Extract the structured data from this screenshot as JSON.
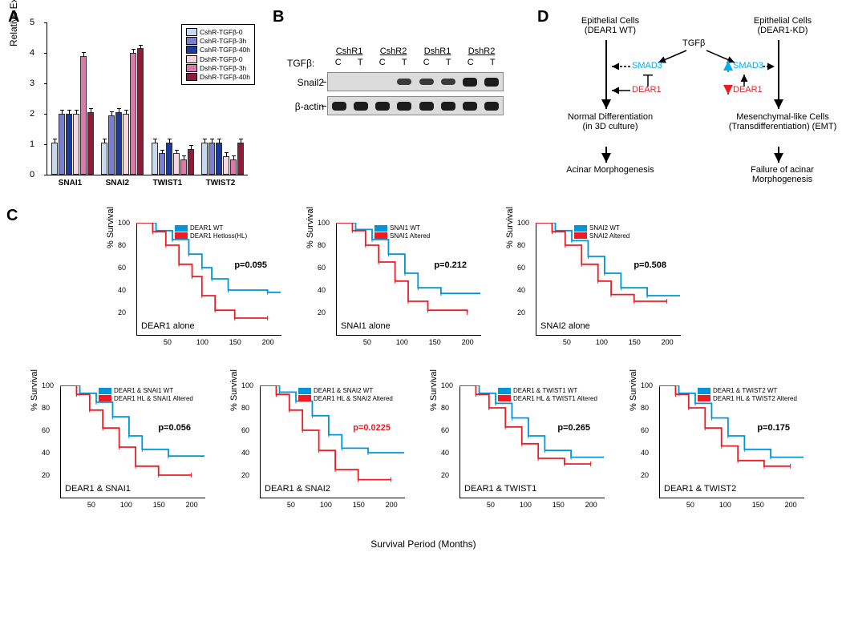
{
  "panel_labels": {
    "A": "A",
    "B": "B",
    "C": "C",
    "D": "D"
  },
  "panelA": {
    "type": "bar",
    "ylabel": "Relative Expression\n(Fold of Ctrl)",
    "ylim": [
      0,
      5
    ],
    "ytick_step": 1,
    "categories": [
      "SNAI1",
      "SNAI2",
      "TWIST1",
      "TWIST2"
    ],
    "series": [
      {
        "name": "CshR-TGFβ-0",
        "color": "#c8d8ef"
      },
      {
        "name": "CshR-TGFβ-3h",
        "color": "#7a7fcf"
      },
      {
        "name": "CshR-TGFβ-40h",
        "color": "#1a3b9c"
      },
      {
        "name": "DshR-TGFβ-0",
        "color": "#f5d6de"
      },
      {
        "name": "DshR-TGFβ-3h",
        "color": "#d97ba6"
      },
      {
        "name": "DshR-TGFβ-40h",
        "color": "#8e1b3a"
      }
    ],
    "values": {
      "SNAI1": [
        1.0,
        1.95,
        1.95,
        1.95,
        3.85,
        2.0
      ],
      "SNAI2": [
        1.0,
        1.9,
        2.0,
        1.95,
        3.95,
        4.1
      ],
      "TWIST1": [
        1.0,
        0.65,
        1.0,
        0.65,
        0.45,
        0.8
      ],
      "TWIST2": [
        1.0,
        1.0,
        1.0,
        0.55,
        0.45,
        1.0
      ]
    },
    "error": 0.15
  },
  "panelB": {
    "tgfb_label": "TGFβ:",
    "groups": [
      "CshR1",
      "CshR2",
      "DshR1",
      "DshR2"
    ],
    "conditions": [
      "C",
      "T",
      "C",
      "T",
      "C",
      "T",
      "C",
      "T"
    ],
    "rows": [
      {
        "label": "Snail2",
        "intensities": [
          "faint",
          "faint",
          "faint",
          "",
          "",
          "",
          "strong",
          "strong"
        ],
        "show": [
          false,
          false,
          false,
          true,
          true,
          true,
          true,
          true
        ]
      },
      {
        "label": "β-actin",
        "intensities": [
          "strong",
          "strong",
          "strong",
          "strong",
          "strong",
          "strong",
          "strong",
          "strong"
        ],
        "show": [
          true,
          true,
          true,
          true,
          true,
          true,
          true,
          true
        ]
      }
    ]
  },
  "panelD": {
    "left_head": "Epithelial Cells\n(DEAR1 WT)",
    "right_head": "Epithelial Cells\n(DEAR1-KD)",
    "tgfb": "TGFβ",
    "smad3": "SMAD3",
    "dear1": "DEAR1",
    "left_mid": "Normal\nDifferentiation\n(in 3D culture)",
    "right_mid": "Mesenchymal-like Cells\n(Transdifferentiation)\n(EMT)",
    "left_out": "Acinar\nMorphogenesis",
    "right_out": "Failure of acinar\nMorphogenesis"
  },
  "panelC": {
    "ylabel": "% Survival",
    "xlabel": "Survival Period (Months)",
    "ylim": [
      0,
      100
    ],
    "ytick_step": 20,
    "xlim": [
      0,
      220
    ],
    "xticks": [
      50,
      100,
      150,
      200
    ],
    "legend_colors": {
      "wt": "#0095d6",
      "alt": "#ed1c24"
    },
    "plots_row1": [
      {
        "title": "DEAR1 alone",
        "leg": [
          "DEAR1 WT",
          "DEAR1 Hetloss(HL)"
        ],
        "p": "p=0.095",
        "p_red": false,
        "wt": [
          [
            0,
            100
          ],
          [
            30,
            93
          ],
          [
            55,
            85
          ],
          [
            80,
            72
          ],
          [
            100,
            60
          ],
          [
            115,
            50
          ],
          [
            140,
            40
          ],
          [
            200,
            38
          ],
          [
            222,
            38
          ]
        ],
        "alt": [
          [
            0,
            100
          ],
          [
            25,
            92
          ],
          [
            45,
            80
          ],
          [
            65,
            63
          ],
          [
            85,
            52
          ],
          [
            100,
            35
          ],
          [
            120,
            22
          ],
          [
            150,
            15
          ],
          [
            200,
            15
          ]
        ]
      },
      {
        "title": "SNAI1 alone",
        "leg": [
          "SNAI1 WT",
          "SNAI1 Altered"
        ],
        "p": "p=0.212",
        "p_red": false,
        "wt": [
          [
            0,
            100
          ],
          [
            30,
            94
          ],
          [
            55,
            85
          ],
          [
            80,
            72
          ],
          [
            105,
            55
          ],
          [
            125,
            42
          ],
          [
            160,
            37
          ],
          [
            222,
            37
          ]
        ],
        "alt": [
          [
            0,
            100
          ],
          [
            25,
            93
          ],
          [
            45,
            80
          ],
          [
            65,
            65
          ],
          [
            90,
            48
          ],
          [
            110,
            30
          ],
          [
            140,
            22
          ],
          [
            200,
            20
          ]
        ]
      },
      {
        "title": "SNAI2 alone",
        "leg": [
          "SNAI2 WT",
          "SNAI2 Altered"
        ],
        "p": "p=0.508",
        "p_red": false,
        "wt": [
          [
            0,
            100
          ],
          [
            30,
            93
          ],
          [
            55,
            84
          ],
          [
            80,
            70
          ],
          [
            105,
            55
          ],
          [
            130,
            42
          ],
          [
            170,
            35
          ],
          [
            222,
            34
          ]
        ],
        "alt": [
          [
            0,
            100
          ],
          [
            25,
            92
          ],
          [
            45,
            80
          ],
          [
            70,
            63
          ],
          [
            95,
            48
          ],
          [
            115,
            36
          ],
          [
            150,
            30
          ],
          [
            200,
            30
          ]
        ]
      }
    ],
    "plots_row2": [
      {
        "title": "DEAR1 & SNAI1",
        "leg": [
          "DEAR1 & SNAI1 WT",
          "DEAR1 HL & SNAI1 Altered"
        ],
        "p": "p=0.056",
        "p_red": false,
        "wt": [
          [
            0,
            100
          ],
          [
            30,
            93
          ],
          [
            55,
            85
          ],
          [
            80,
            72
          ],
          [
            105,
            55
          ],
          [
            125,
            43
          ],
          [
            165,
            37
          ],
          [
            222,
            36
          ]
        ],
        "alt": [
          [
            0,
            100
          ],
          [
            25,
            92
          ],
          [
            45,
            78
          ],
          [
            65,
            62
          ],
          [
            90,
            45
          ],
          [
            115,
            28
          ],
          [
            150,
            20
          ],
          [
            200,
            20
          ]
        ]
      },
      {
        "title": "DEAR1 & SNAI2",
        "leg": [
          "DEAR1 & SNAI2 WT",
          "DEAR1 HL & SNAI2 Altered"
        ],
        "p": "p=0.0225",
        "p_red": true,
        "wt": [
          [
            0,
            100
          ],
          [
            30,
            94
          ],
          [
            55,
            86
          ],
          [
            80,
            73
          ],
          [
            105,
            56
          ],
          [
            125,
            44
          ],
          [
            165,
            40
          ],
          [
            222,
            40
          ]
        ],
        "alt": [
          [
            0,
            100
          ],
          [
            25,
            92
          ],
          [
            45,
            78
          ],
          [
            65,
            60
          ],
          [
            90,
            42
          ],
          [
            115,
            25
          ],
          [
            150,
            16
          ],
          [
            200,
            16
          ]
        ]
      },
      {
        "title": "DEAR1 & TWIST1",
        "leg": [
          "DEAR1 & TWIST1 WT",
          "DEAR1 HL & TWIST1 Altered"
        ],
        "p": "p=0.265",
        "p_red": false,
        "wt": [
          [
            0,
            100
          ],
          [
            30,
            93
          ],
          [
            55,
            84
          ],
          [
            80,
            71
          ],
          [
            105,
            55
          ],
          [
            130,
            42
          ],
          [
            170,
            36
          ],
          [
            222,
            35
          ]
        ],
        "alt": [
          [
            0,
            100
          ],
          [
            25,
            92
          ],
          [
            45,
            80
          ],
          [
            70,
            63
          ],
          [
            95,
            48
          ],
          [
            120,
            35
          ],
          [
            160,
            30
          ],
          [
            200,
            30
          ]
        ]
      },
      {
        "title": "DEAR1 & TWIST2",
        "leg": [
          "DEAR1 & TWIST2 WT",
          "DEAR1 HL & TWIST2 Altered"
        ],
        "p": "p=0.175",
        "p_red": false,
        "wt": [
          [
            0,
            100
          ],
          [
            30,
            93
          ],
          [
            55,
            84
          ],
          [
            80,
            71
          ],
          [
            105,
            55
          ],
          [
            130,
            43
          ],
          [
            170,
            36
          ],
          [
            222,
            35
          ]
        ],
        "alt": [
          [
            0,
            100
          ],
          [
            25,
            92
          ],
          [
            45,
            80
          ],
          [
            70,
            62
          ],
          [
            95,
            46
          ],
          [
            120,
            33
          ],
          [
            160,
            28
          ],
          [
            200,
            28
          ]
        ]
      }
    ]
  }
}
